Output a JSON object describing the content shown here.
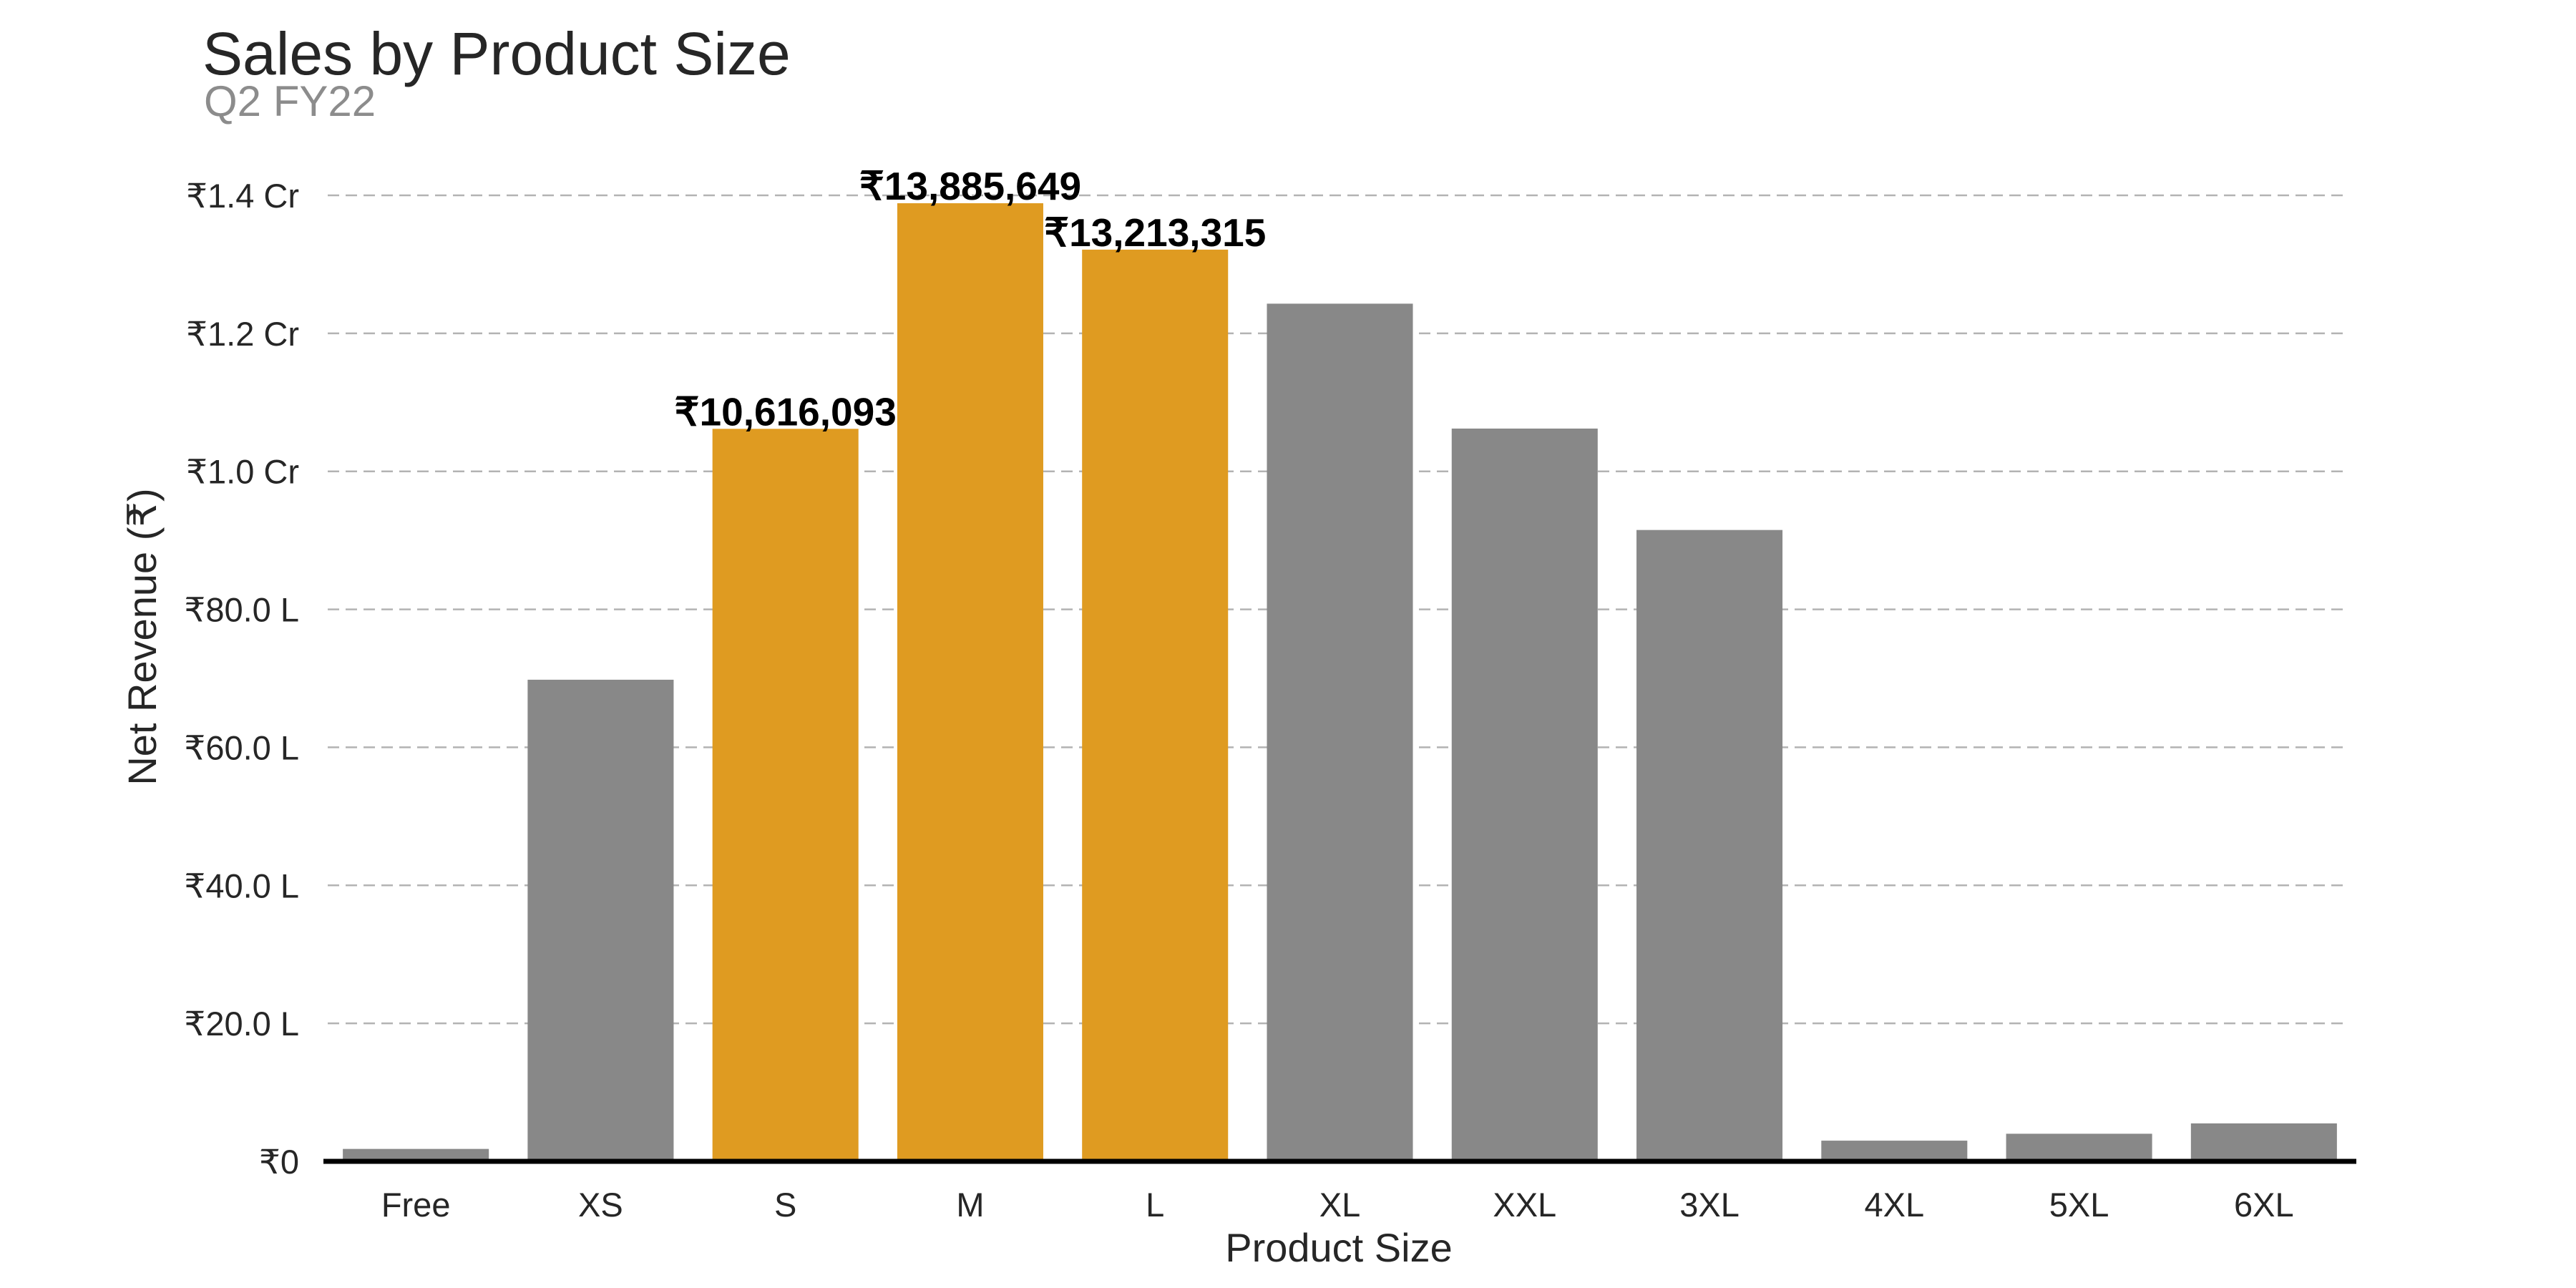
{
  "chart_data": {
    "type": "bar",
    "title": "Sales by Product Size",
    "subtitle": "Q2 FY22",
    "xlabel": "Product Size",
    "ylabel": "Net Revenue (₹)",
    "ylim": [
      0,
      14500000
    ],
    "grid": true,
    "categories": [
      "Free",
      "XS",
      "S",
      "M",
      "L",
      "XL",
      "XXL",
      "3XL",
      "4XL",
      "5XL",
      "6XL"
    ],
    "values": [
      180000,
      6980000,
      10616093,
      13885649,
      13213315,
      12430000,
      10620000,
      9150000,
      300000,
      400000,
      550000
    ],
    "highlighted": [
      false,
      false,
      true,
      true,
      true,
      false,
      false,
      false,
      false,
      false,
      false
    ],
    "data_labels": [
      "",
      "",
      "₹10,616,093",
      "₹13,885,649",
      "₹13,213,315",
      "",
      "",
      "",
      "",
      "",
      ""
    ],
    "yticks": [
      {
        "value": 0,
        "label": "₹0"
      },
      {
        "value": 2000000,
        "label": "₹20.0 L"
      },
      {
        "value": 4000000,
        "label": "₹40.0 L"
      },
      {
        "value": 6000000,
        "label": "₹60.0 L"
      },
      {
        "value": 8000000,
        "label": "₹80.0 L"
      },
      {
        "value": 10000000,
        "label": "₹1.0 Cr"
      },
      {
        "value": 12000000,
        "label": "₹1.2 Cr"
      },
      {
        "value": 14000000,
        "label": "₹1.4 Cr"
      }
    ],
    "colors": {
      "default": "#888888",
      "highlight": "#df9b21"
    }
  }
}
